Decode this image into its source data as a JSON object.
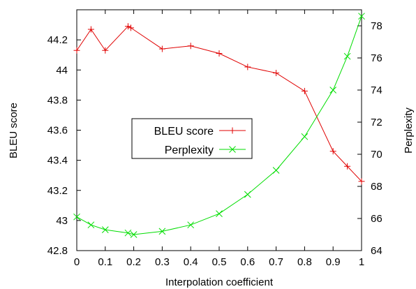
{
  "chart_data": {
    "type": "line",
    "xlabel": "Interpolation coefficient",
    "ylabel_left": "BLEU score",
    "ylabel_right": "Perplexity",
    "xlim": [
      0,
      1
    ],
    "ylim_left": [
      42.8,
      44.4
    ],
    "ylim_right": [
      64,
      79
    ],
    "x_ticks": [
      "0",
      "0.1",
      "0.2",
      "0.3",
      "0.4",
      "0.5",
      "0.6",
      "0.7",
      "0.8",
      "0.9",
      "1"
    ],
    "y_left_ticks": [
      "42.8",
      "43",
      "43.2",
      "43.4",
      "43.6",
      "43.8",
      "44",
      "44.2"
    ],
    "y_right_ticks": [
      "64",
      "66",
      "68",
      "70",
      "72",
      "74",
      "76",
      "78"
    ],
    "grid": false,
    "legend_position": "center",
    "series": [
      {
        "name": "BLEU score",
        "axis": "left",
        "color": "#e00000",
        "marker": "plus",
        "x": [
          0,
          0.05,
          0.1,
          0.18,
          0.19,
          0.3,
          0.4,
          0.5,
          0.6,
          0.7,
          0.8,
          0.9,
          0.95,
          1
        ],
        "y": [
          44.13,
          44.27,
          44.13,
          44.29,
          44.28,
          44.14,
          44.16,
          44.11,
          44.02,
          43.98,
          43.86,
          43.46,
          43.36,
          43.26
        ]
      },
      {
        "name": "Perplexity",
        "axis": "right",
        "color": "#00dd00",
        "marker": "cross",
        "x": [
          0,
          0.05,
          0.1,
          0.18,
          0.2,
          0.3,
          0.4,
          0.5,
          0.6,
          0.7,
          0.8,
          0.9,
          0.95,
          1
        ],
        "y": [
          66.1,
          65.6,
          65.3,
          65.1,
          65.0,
          65.2,
          65.6,
          66.3,
          67.5,
          69.0,
          71.1,
          74.0,
          76.1,
          78.6
        ]
      }
    ]
  }
}
